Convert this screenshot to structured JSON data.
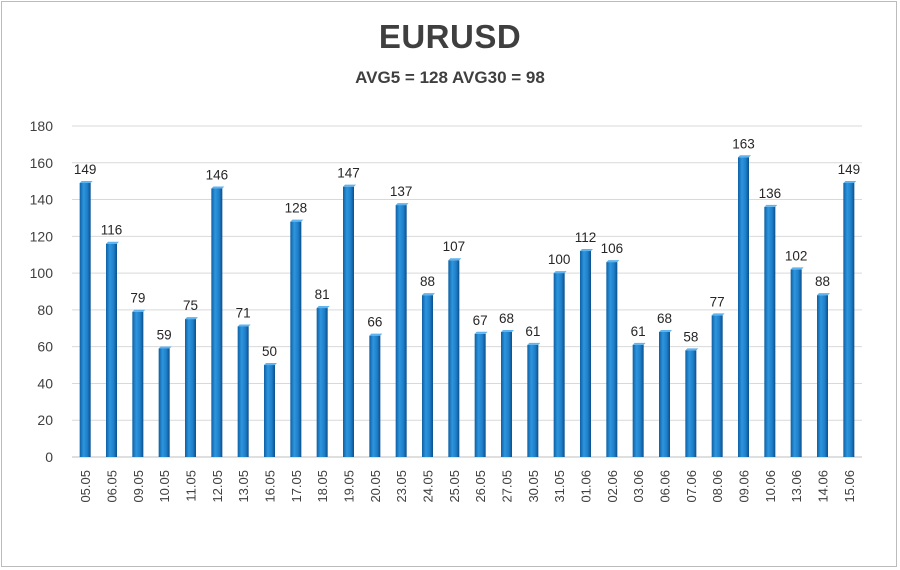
{
  "chart_data": {
    "type": "bar",
    "title": "EURUSD",
    "subtitle": "AVG5 = 128 AVG30 = 98",
    "xlabel": "",
    "ylabel": "",
    "ylim": [
      0,
      180
    ],
    "yticks": [
      0,
      20,
      40,
      60,
      80,
      100,
      120,
      140,
      160,
      180
    ],
    "grid": true,
    "legend": "none",
    "bar_color": "#1f7fc9",
    "categories": [
      "05.05",
      "06.05",
      "09.05",
      "10.05",
      "11.05",
      "12.05",
      "13.05",
      "16.05",
      "17.05",
      "18.05",
      "19.05",
      "20.05",
      "23.05",
      "24.05",
      "25.05",
      "26.05",
      "27.05",
      "30.05",
      "31.05",
      "01.06",
      "02.06",
      "03.06",
      "06.06",
      "07.06",
      "08.06",
      "09.06",
      "10.06",
      "13.06",
      "14.06",
      "15.06"
    ],
    "values": [
      149,
      116,
      79,
      59,
      75,
      146,
      71,
      50,
      128,
      81,
      147,
      66,
      137,
      88,
      107,
      67,
      68,
      61,
      100,
      112,
      106,
      61,
      68,
      58,
      77,
      163,
      136,
      102,
      88,
      149
    ]
  }
}
